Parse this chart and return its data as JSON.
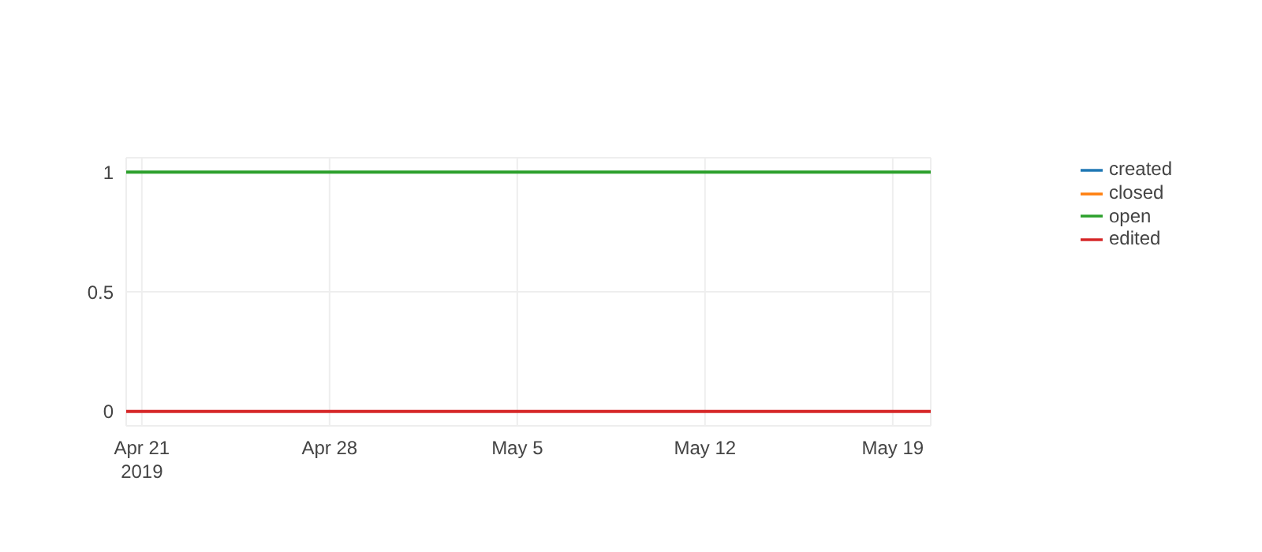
{
  "chart_data": {
    "type": "line",
    "x": [
      "2019-04-20T10:00",
      "2019-05-20T10:00"
    ],
    "series": [
      {
        "name": "created",
        "color": "#1f77b4",
        "values": [
          null,
          null
        ]
      },
      {
        "name": "closed",
        "color": "#ff7f0e",
        "values": [
          null,
          null
        ]
      },
      {
        "name": "open",
        "color": "#2ca02c",
        "values": [
          1,
          1
        ]
      },
      {
        "name": "edited",
        "color": "#d62728",
        "values": [
          0,
          0
        ]
      }
    ],
    "xlim": [
      "2019-04-20T10:00",
      "2019-05-20T10:00"
    ],
    "xticks": [
      {
        "value": "2019-04-21",
        "label": "Apr 21\n2019"
      },
      {
        "value": "2019-04-28",
        "label": "Apr 28"
      },
      {
        "value": "2019-05-05",
        "label": "May 5"
      },
      {
        "value": "2019-05-12",
        "label": "May 12"
      },
      {
        "value": "2019-05-19",
        "label": "May 19"
      }
    ],
    "ylim": [
      -0.06,
      1.06
    ],
    "yticks": [
      0,
      0.5,
      1
    ],
    "grid": true,
    "legend": "top right",
    "marker": "none",
    "line_style": "solid"
  }
}
